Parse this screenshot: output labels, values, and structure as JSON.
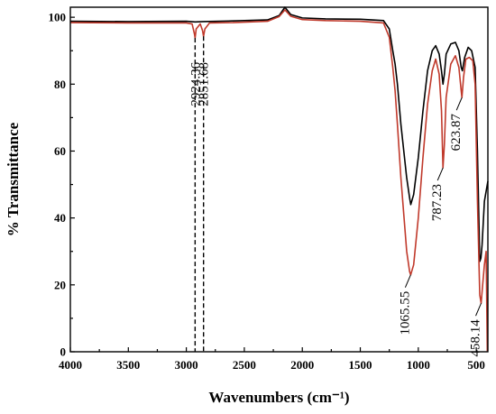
{
  "chart_data": {
    "type": "line",
    "xlabel": "Wavenumbers (cm⁻¹)",
    "ylabel": "% Transmittance",
    "xlim": [
      4000,
      400
    ],
    "ylim": [
      0,
      103
    ],
    "x_reversed": true,
    "xticks": [
      4000,
      3500,
      3000,
      2500,
      2000,
      1500,
      1000,
      500
    ],
    "yticks": [
      0,
      20,
      40,
      60,
      80,
      100
    ],
    "grid": false,
    "colors": {
      "black_series": "#000000",
      "red_series": "#c0392b"
    },
    "series": [
      {
        "color": "#000000",
        "points": [
          [
            4000,
            98.8
          ],
          [
            3500,
            98.7
          ],
          [
            3000,
            98.8
          ],
          [
            2924.36,
            98.6
          ],
          [
            2851.68,
            98.7
          ],
          [
            2600,
            98.9
          ],
          [
            2300,
            99.2
          ],
          [
            2200,
            100.5
          ],
          [
            2150,
            103
          ],
          [
            2100,
            100.8
          ],
          [
            2000,
            99.8
          ],
          [
            1800,
            99.5
          ],
          [
            1500,
            99.4
          ],
          [
            1300,
            99.0
          ],
          [
            1250,
            96.5
          ],
          [
            1220,
            90
          ],
          [
            1200,
            86
          ],
          [
            1180,
            80
          ],
          [
            1150,
            68
          ],
          [
            1100,
            52
          ],
          [
            1075,
            46
          ],
          [
            1065,
            44
          ],
          [
            1040,
            47
          ],
          [
            1000,
            58
          ],
          [
            960,
            72
          ],
          [
            920,
            84
          ],
          [
            880,
            90
          ],
          [
            850,
            91.5
          ],
          [
            820,
            89
          ],
          [
            800,
            84
          ],
          [
            787,
            80
          ],
          [
            775,
            83
          ],
          [
            760,
            89
          ],
          [
            720,
            92
          ],
          [
            680,
            92.5
          ],
          [
            650,
            90
          ],
          [
            630,
            85
          ],
          [
            620,
            84
          ],
          [
            600,
            88
          ],
          [
            570,
            91
          ],
          [
            540,
            90
          ],
          [
            510,
            85
          ],
          [
            490,
            60
          ],
          [
            470,
            27
          ],
          [
            460,
            28
          ],
          [
            450,
            32
          ],
          [
            430,
            45
          ],
          [
            400,
            51
          ]
        ]
      },
      {
        "color": "#c0392b",
        "points": [
          [
            4000,
            98.4
          ],
          [
            3500,
            98.3
          ],
          [
            3000,
            98.3
          ],
          [
            2950,
            98.0
          ],
          [
            2930,
            95
          ],
          [
            2924.36,
            93.8
          ],
          [
            2915,
            96.5
          ],
          [
            2880,
            98.0
          ],
          [
            2860,
            96
          ],
          [
            2851.68,
            94.3
          ],
          [
            2840,
            96.5
          ],
          [
            2800,
            98.3
          ],
          [
            2600,
            98.4
          ],
          [
            2300,
            98.8
          ],
          [
            2200,
            100.2
          ],
          [
            2150,
            102.2
          ],
          [
            2100,
            100.3
          ],
          [
            2000,
            99.3
          ],
          [
            1800,
            99.0
          ],
          [
            1500,
            98.8
          ],
          [
            1300,
            98.3
          ],
          [
            1250,
            94
          ],
          [
            1220,
            85
          ],
          [
            1200,
            78
          ],
          [
            1180,
            68
          ],
          [
            1150,
            52
          ],
          [
            1100,
            30
          ],
          [
            1075,
            24
          ],
          [
            1065.55,
            23
          ],
          [
            1040,
            26
          ],
          [
            1000,
            40
          ],
          [
            960,
            58
          ],
          [
            920,
            74
          ],
          [
            880,
            84
          ],
          [
            850,
            87.5
          ],
          [
            820,
            83
          ],
          [
            800,
            72
          ],
          [
            787.23,
            55
          ],
          [
            775,
            62
          ],
          [
            760,
            76
          ],
          [
            720,
            86
          ],
          [
            680,
            88.5
          ],
          [
            650,
            85
          ],
          [
            630,
            78
          ],
          [
            623.87,
            76
          ],
          [
            610,
            82
          ],
          [
            590,
            87.5
          ],
          [
            560,
            88
          ],
          [
            530,
            87
          ],
          [
            510,
            80
          ],
          [
            490,
            45
          ],
          [
            470,
            17
          ],
          [
            458.14,
            14.5
          ],
          [
            445,
            20
          ],
          [
            430,
            26
          ],
          [
            415,
            30
          ],
          [
            405,
            0
          ]
        ]
      }
    ],
    "annotations": [
      {
        "label": "2924.36",
        "x": 2924.36,
        "y": 93.8,
        "style": "dashed-line"
      },
      {
        "label": "2851.68",
        "x": 2851.68,
        "y": 94.3,
        "style": "dashed-line"
      },
      {
        "label": "1065.55",
        "x": 1065.55,
        "y": 23,
        "style": "leader"
      },
      {
        "label": "787.23",
        "x": 787.23,
        "y": 55,
        "style": "leader"
      },
      {
        "label": "623.87",
        "x": 623.87,
        "y": 76,
        "style": "leader"
      },
      {
        "label": "458.14",
        "x": 458.14,
        "y": 14.5,
        "style": "leader"
      }
    ]
  }
}
